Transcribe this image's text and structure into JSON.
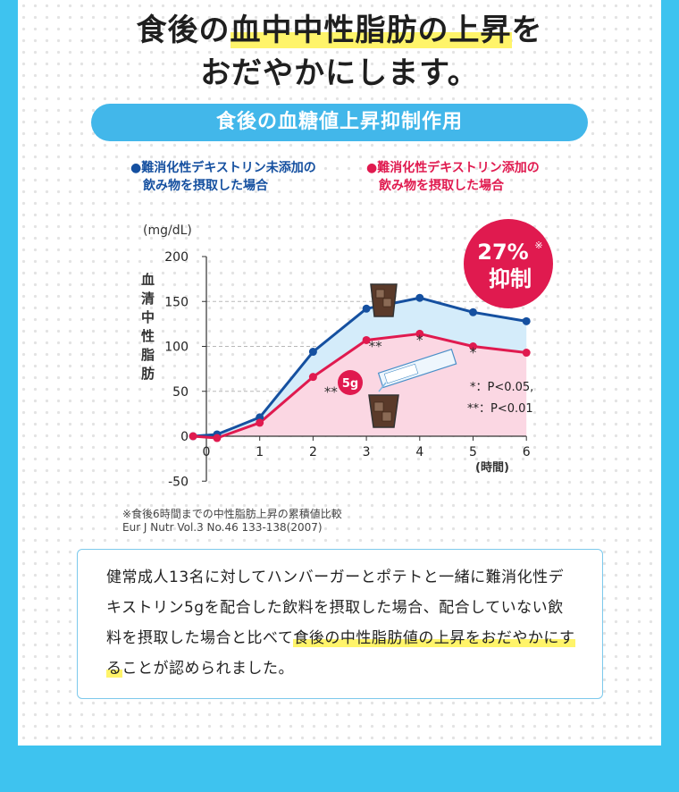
{
  "headline": {
    "line1_pre": "食後の",
    "line1_highlight": "血中中性脂肪の上昇",
    "line1_post": "を",
    "line2": "おだやかにします。"
  },
  "pill_title": "食後の血糖値上昇抑制作用",
  "colors": {
    "blue": "#1550a0",
    "red": "#e01a4f",
    "blue_fill": "#d4ecfa",
    "red_fill": "#fbd7e3",
    "accent": "#42b7ea"
  },
  "chart_data": {
    "type": "line",
    "ylabel_unit": "(mg/dL)",
    "ylabel": "血清中性脂肪",
    "xlabel": "(時間)",
    "ylim": [
      -50,
      200
    ],
    "xlim": [
      -0.25,
      6
    ],
    "yticks": [
      "200",
      "150",
      "100",
      "50",
      "0",
      "-50"
    ],
    "ytick_values": [
      200,
      150,
      100,
      50,
      0,
      -50
    ],
    "xticks": [
      "0",
      "1",
      "2",
      "3",
      "4",
      "5",
      "6"
    ],
    "x": [
      -0.25,
      0,
      0.75,
      1.75,
      2.75,
      3.75,
      4.75,
      5.75
    ],
    "series": [
      {
        "name": "難消化性デキストリン未添加の飲み物を摂取した場合",
        "color": "#1550a0",
        "x": [
          -0.25,
          0.2,
          1,
          2,
          3,
          4,
          5,
          6
        ],
        "values": [
          0,
          2,
          21,
          94,
          142,
          154,
          138,
          128
        ]
      },
      {
        "name": "難消化性デキストリン添加の飲み物を摂取した場合",
        "color": "#e01a4f",
        "x": [
          -0.25,
          0.2,
          1,
          2,
          3,
          4,
          5,
          6
        ],
        "values": [
          0,
          -2,
          15,
          66,
          107,
          114,
          100,
          93
        ]
      }
    ],
    "significance": [
      {
        "x": 2,
        "label": "**"
      },
      {
        "x": 3,
        "label": "**"
      },
      {
        "x": 4,
        "label": "*"
      },
      {
        "x": 5,
        "label": "*"
      }
    ],
    "sig_legend": [
      "*：P<0.05,",
      "**：P<0.01"
    ],
    "badge_line1": "27%",
    "badge_mark": "※",
    "badge_line2": "抑制",
    "dose_label": "5g",
    "grid": "dashed horizontal"
  },
  "legend": {
    "blue_line1": "●難消化性デキストリン未添加の",
    "blue_line2": "飲み物を摂取した場合",
    "red_line1": "●難消化性デキストリン添加の",
    "red_line2": "飲み物を摂取した場合"
  },
  "notes": {
    "line1": "※食後6時間までの中性脂肪上昇の累積値比較",
    "line2": "Eur J Nutr Vol.3 No.46 133-138(2007)"
  },
  "description": {
    "part1": "健常成人13名に対してハンバーガーとポテトと一緒に難消化性デキストリン5gを配合した飲料を摂取した場合、配合していない飲料を摂取した場合と比べて",
    "highlight": "食後の中性脂肪値の上昇をおだやかにする",
    "part2": "ことが認められました。"
  }
}
